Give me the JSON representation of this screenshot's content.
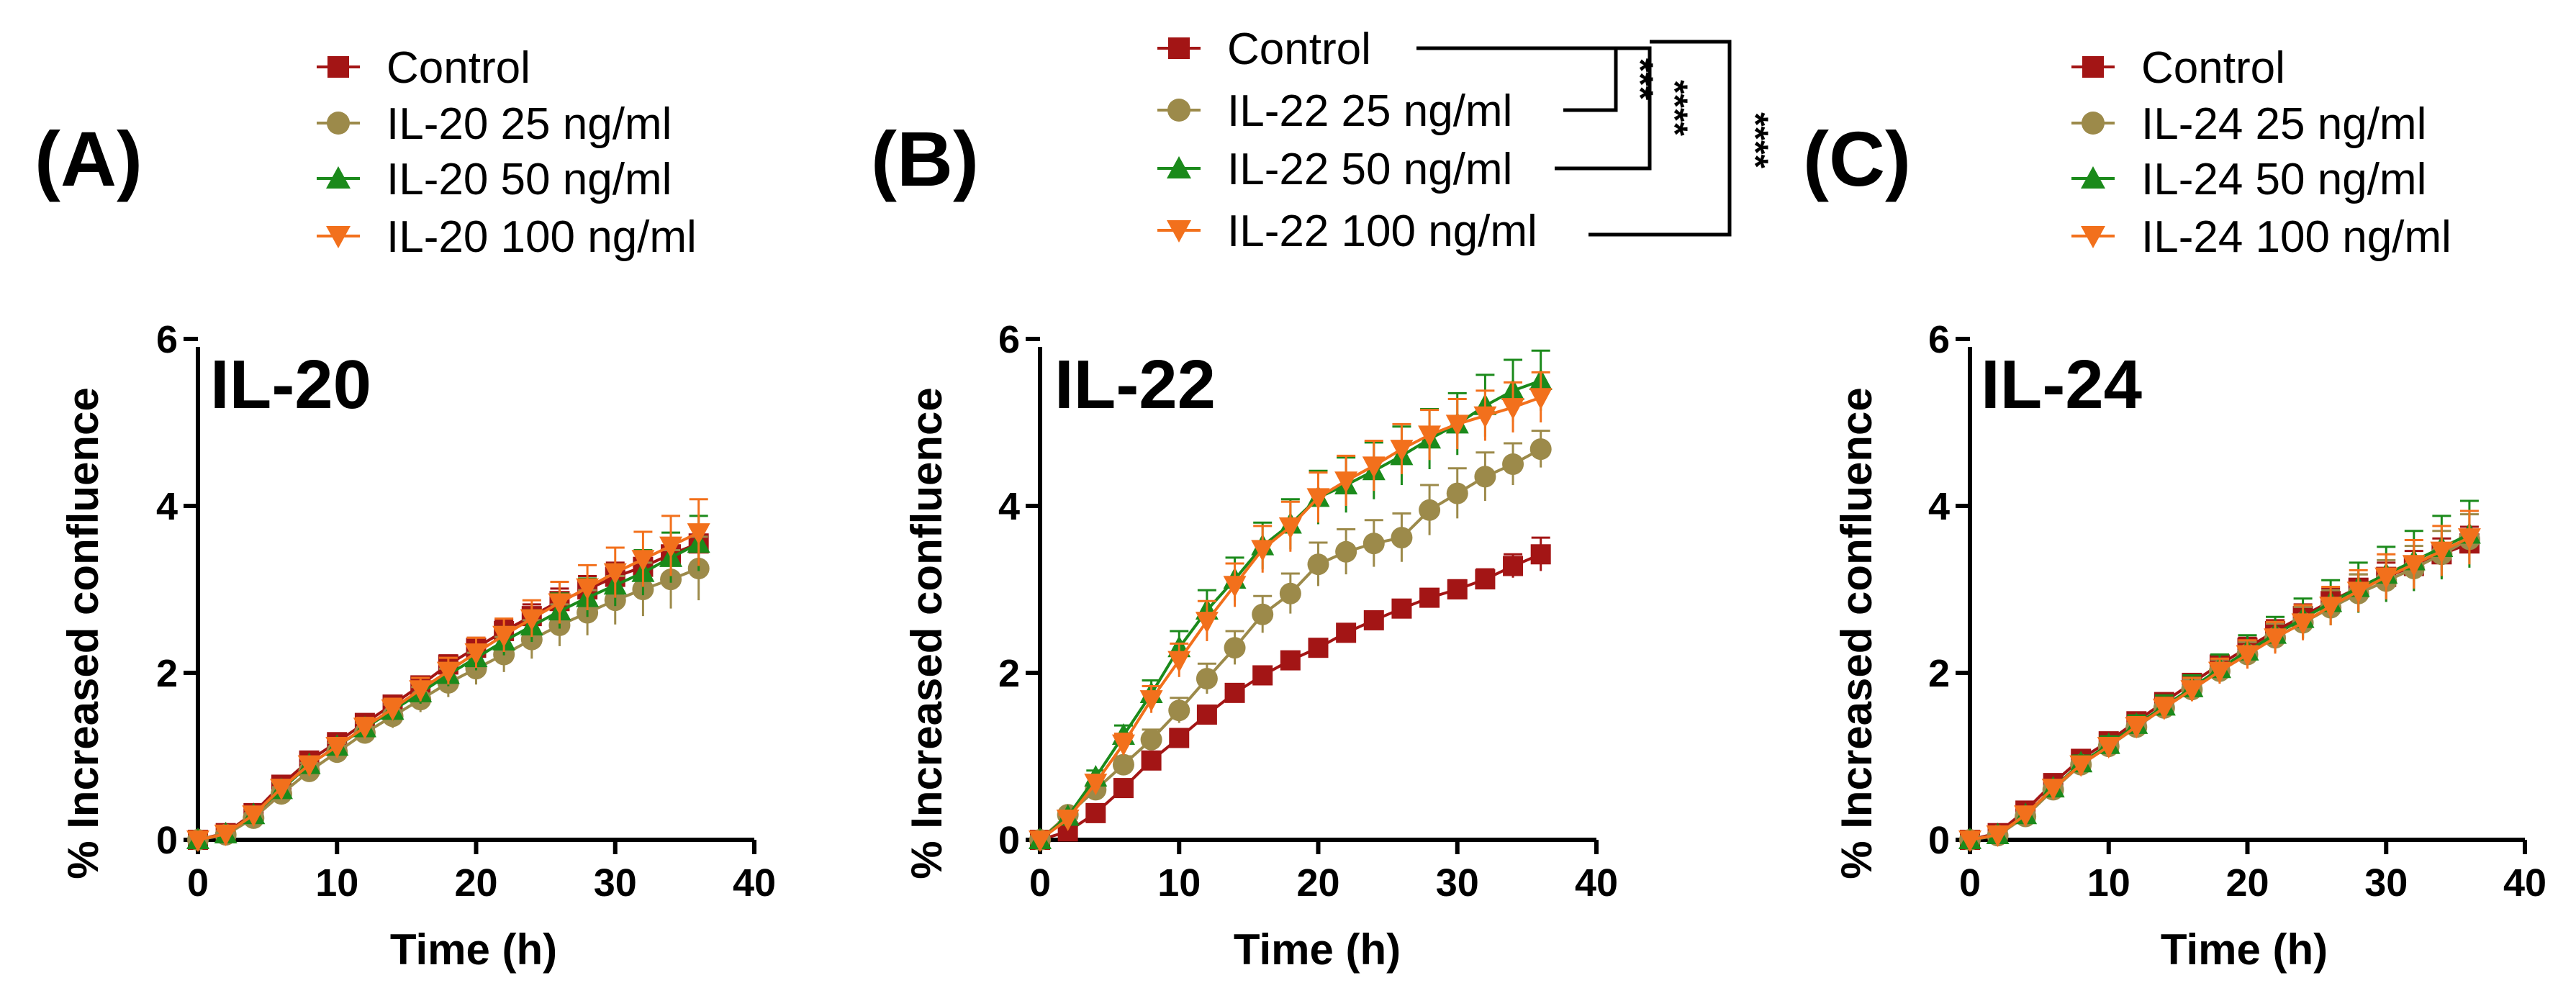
{
  "chart_data": [
    {
      "type": "line",
      "panel_label": "(A)",
      "inset_title": "IL-20",
      "xlabel": "Time (h)",
      "ylabel": "% Increased confluence",
      "xlim": [
        0,
        40
      ],
      "ylim": [
        0,
        6
      ],
      "x_ticks": [
        "0",
        "10",
        "20",
        "30",
        "40"
      ],
      "y_ticks": [
        "0",
        "2",
        "4",
        "6"
      ],
      "legend_position": "top",
      "x": [
        0,
        2,
        4,
        6,
        8,
        10,
        12,
        14,
        16,
        18,
        20,
        22,
        24,
        26,
        28,
        30,
        32,
        34,
        36
      ],
      "series": [
        {
          "name": "Control",
          "marker": "square",
          "color": "#A31515",
          "values": [
            0,
            0.08,
            0.32,
            0.66,
            0.95,
            1.17,
            1.4,
            1.62,
            1.85,
            2.1,
            2.3,
            2.5,
            2.68,
            2.86,
            3.0,
            3.15,
            3.27,
            3.42,
            3.55
          ],
          "errors": [
            0.02,
            0.04,
            0.06,
            0.07,
            0.08,
            0.08,
            0.09,
            0.1,
            0.1,
            0.11,
            0.12,
            0.13,
            0.14,
            0.15,
            0.16,
            0.17,
            0.18,
            0.19,
            0.2
          ]
        },
        {
          "name": "IL-20 25 ng/ml",
          "marker": "circle",
          "color": "#9C8A4A",
          "values": [
            0,
            0.06,
            0.26,
            0.55,
            0.82,
            1.05,
            1.28,
            1.48,
            1.68,
            1.88,
            2.05,
            2.22,
            2.4,
            2.57,
            2.72,
            2.87,
            3.0,
            3.12,
            3.25
          ],
          "errors": [
            0.02,
            0.04,
            0.06,
            0.08,
            0.1,
            0.11,
            0.12,
            0.14,
            0.15,
            0.17,
            0.19,
            0.21,
            0.23,
            0.25,
            0.27,
            0.29,
            0.32,
            0.35,
            0.38
          ]
        },
        {
          "name": "IL-20 50 ng/ml",
          "marker": "triangle-up",
          "color": "#1B8A1B",
          "values": [
            0,
            0.07,
            0.3,
            0.6,
            0.9,
            1.12,
            1.34,
            1.55,
            1.76,
            1.98,
            2.18,
            2.38,
            2.56,
            2.74,
            2.9,
            3.05,
            3.2,
            3.38,
            3.55
          ],
          "errors": [
            0.02,
            0.04,
            0.06,
            0.08,
            0.09,
            0.1,
            0.11,
            0.12,
            0.13,
            0.14,
            0.15,
            0.17,
            0.19,
            0.21,
            0.23,
            0.25,
            0.27,
            0.3,
            0.33
          ]
        },
        {
          "name": "IL-20 100 ng/ml",
          "marker": "triangle-down",
          "color": "#F2701C",
          "values": [
            0,
            0.07,
            0.3,
            0.62,
            0.9,
            1.12,
            1.35,
            1.57,
            1.8,
            2.02,
            2.24,
            2.45,
            2.65,
            2.84,
            3.02,
            3.2,
            3.36,
            3.52,
            3.68
          ],
          "errors": [
            0.02,
            0.04,
            0.06,
            0.08,
            0.09,
            0.1,
            0.11,
            0.12,
            0.14,
            0.16,
            0.18,
            0.2,
            0.22,
            0.25,
            0.27,
            0.3,
            0.33,
            0.36,
            0.4
          ]
        }
      ]
    },
    {
      "type": "line",
      "panel_label": "(B)",
      "inset_title": "IL-22",
      "xlabel": "Time (h)",
      "ylabel": "% Increased confluence",
      "xlim": [
        0,
        40
      ],
      "ylim": [
        0,
        6
      ],
      "x_ticks": [
        "0",
        "10",
        "20",
        "30",
        "40"
      ],
      "y_ticks": [
        "0",
        "2",
        "4",
        "6"
      ],
      "legend_position": "top",
      "x": [
        0,
        2,
        4,
        6,
        8,
        10,
        12,
        14,
        16,
        18,
        20,
        22,
        24,
        26,
        28,
        30,
        32,
        34,
        36
      ],
      "series": [
        {
          "name": "Control",
          "marker": "square",
          "color": "#A31515",
          "values": [
            0,
            0.1,
            0.32,
            0.62,
            0.95,
            1.22,
            1.5,
            1.76,
            1.97,
            2.15,
            2.3,
            2.48,
            2.63,
            2.77,
            2.9,
            3.0,
            3.12,
            3.28,
            3.42
          ],
          "errors": [
            0.02,
            0.03,
            0.04,
            0.05,
            0.05,
            0.06,
            0.06,
            0.07,
            0.07,
            0.07,
            0.08,
            0.08,
            0.09,
            0.09,
            0.1,
            0.11,
            0.12,
            0.14,
            0.2
          ]
        },
        {
          "name": "IL-22 25 ng/ml",
          "marker": "circle",
          "color": "#9C8A4A",
          "values": [
            0,
            0.3,
            0.6,
            0.9,
            1.2,
            1.55,
            1.93,
            2.3,
            2.7,
            2.95,
            3.3,
            3.45,
            3.55,
            3.62,
            3.95,
            4.15,
            4.35,
            4.5,
            4.68
          ],
          "errors": [
            0.02,
            0.05,
            0.07,
            0.1,
            0.12,
            0.15,
            0.18,
            0.2,
            0.22,
            0.24,
            0.26,
            0.27,
            0.28,
            0.29,
            0.3,
            0.3,
            0.29,
            0.25,
            0.22
          ]
        },
        {
          "name": "IL-22 50 ng/ml",
          "marker": "triangle-up",
          "color": "#1B8A1B",
          "values": [
            0,
            0.28,
            0.75,
            1.25,
            1.75,
            2.3,
            2.75,
            3.12,
            3.52,
            3.78,
            4.1,
            4.25,
            4.42,
            4.6,
            4.8,
            4.98,
            5.2,
            5.38,
            5.5
          ],
          "errors": [
            0.02,
            0.05,
            0.08,
            0.12,
            0.16,
            0.2,
            0.24,
            0.26,
            0.28,
            0.3,
            0.32,
            0.33,
            0.34,
            0.35,
            0.36,
            0.37,
            0.37,
            0.37,
            0.36
          ]
        },
        {
          "name": "IL-22 100 ng/ml",
          "marker": "triangle-down",
          "color": "#F2701C",
          "values": [
            0,
            0.25,
            0.68,
            1.15,
            1.68,
            2.15,
            2.62,
            3.05,
            3.48,
            3.75,
            4.1,
            4.3,
            4.48,
            4.68,
            4.85,
            4.98,
            5.08,
            5.18,
            5.3
          ],
          "errors": [
            0.02,
            0.05,
            0.08,
            0.12,
            0.16,
            0.2,
            0.24,
            0.26,
            0.28,
            0.3,
            0.3,
            0.3,
            0.3,
            0.3,
            0.3,
            0.3,
            0.3,
            0.3,
            0.3
          ]
        }
      ],
      "significance": [
        {
          "label": "***",
          "compare": [
            "Control",
            "IL-22 25 ng/ml"
          ]
        },
        {
          "label": "****",
          "compare": [
            "Control",
            "IL-22 50 ng/ml"
          ]
        },
        {
          "label": "****",
          "compare": [
            "Control",
            "IL-22 100 ng/ml"
          ]
        }
      ]
    },
    {
      "type": "line",
      "panel_label": "(C)",
      "inset_title": "IL-24",
      "xlabel": "Time (h)",
      "ylabel": "% Increased confluence",
      "xlim": [
        0,
        40
      ],
      "ylim": [
        0,
        6
      ],
      "x_ticks": [
        "0",
        "10",
        "20",
        "30",
        "40"
      ],
      "y_ticks": [
        "0",
        "2",
        "4",
        "6"
      ],
      "legend_position": "top",
      "x": [
        0,
        2,
        4,
        6,
        8,
        10,
        12,
        14,
        16,
        18,
        20,
        22,
        24,
        26,
        28,
        30,
        32,
        34,
        36
      ],
      "series": [
        {
          "name": "Control",
          "marker": "square",
          "color": "#A31515",
          "values": [
            0,
            0.08,
            0.35,
            0.68,
            0.97,
            1.18,
            1.42,
            1.65,
            1.88,
            2.1,
            2.3,
            2.5,
            2.68,
            2.86,
            3.02,
            3.15,
            3.28,
            3.42,
            3.55
          ],
          "errors": [
            0.02,
            0.04,
            0.05,
            0.06,
            0.07,
            0.08,
            0.09,
            0.1,
            0.1,
            0.11,
            0.12,
            0.13,
            0.14,
            0.15,
            0.16,
            0.17,
            0.18,
            0.19,
            0.2
          ]
        },
        {
          "name": "IL-24 25 ng/ml",
          "marker": "circle",
          "color": "#9C8A4A",
          "values": [
            0,
            0.05,
            0.28,
            0.6,
            0.9,
            1.12,
            1.35,
            1.58,
            1.8,
            2.02,
            2.22,
            2.42,
            2.6,
            2.78,
            2.95,
            3.1,
            3.25,
            3.42,
            3.6
          ],
          "errors": [
            0.02,
            0.04,
            0.06,
            0.07,
            0.08,
            0.09,
            0.1,
            0.11,
            0.12,
            0.14,
            0.15,
            0.17,
            0.19,
            0.21,
            0.23,
            0.25,
            0.27,
            0.28,
            0.3
          ]
        },
        {
          "name": "IL-24 50 ng/ml",
          "marker": "triangle-up",
          "color": "#1B8A1B",
          "values": [
            0,
            0.06,
            0.3,
            0.62,
            0.92,
            1.14,
            1.38,
            1.6,
            1.82,
            2.05,
            2.26,
            2.46,
            2.65,
            2.84,
            3.02,
            3.18,
            3.34,
            3.5,
            3.66
          ],
          "errors": [
            0.02,
            0.04,
            0.06,
            0.08,
            0.09,
            0.1,
            0.11,
            0.13,
            0.15,
            0.17,
            0.19,
            0.21,
            0.24,
            0.27,
            0.3,
            0.33,
            0.36,
            0.38,
            0.4
          ]
        },
        {
          "name": "IL-24 100 ng/ml",
          "marker": "triangle-down",
          "color": "#F2701C",
          "values": [
            0,
            0.06,
            0.3,
            0.62,
            0.9,
            1.12,
            1.36,
            1.58,
            1.8,
            2.02,
            2.22,
            2.42,
            2.6,
            2.8,
            2.98,
            3.15,
            3.3,
            3.46,
            3.62
          ],
          "errors": [
            0.02,
            0.04,
            0.06,
            0.08,
            0.09,
            0.1,
            0.11,
            0.12,
            0.14,
            0.15,
            0.17,
            0.19,
            0.21,
            0.23,
            0.25,
            0.27,
            0.29,
            0.3,
            0.32
          ]
        }
      ]
    }
  ]
}
